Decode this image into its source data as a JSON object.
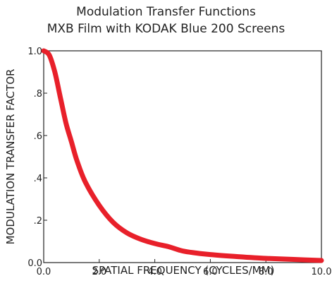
{
  "chart_data": {
    "type": "line",
    "title": "Modulation Transfer Functions",
    "subtitle": "MXB Film with KODAK Blue 200 Screens",
    "xlabel": "SPATIAL FREQUENCY (CYCLES/MM)",
    "ylabel": "MODULATION TRANSFER FACTOR",
    "xlim": [
      0,
      10
    ],
    "ylim": [
      0,
      1
    ],
    "xticks": [
      0,
      2,
      4,
      6,
      8,
      10
    ],
    "xtick_labels": [
      "0.0",
      "2.0",
      "4.0",
      "6.0",
      "8.0",
      "10.0"
    ],
    "yticks": [
      0,
      0.2,
      0.4,
      0.6,
      0.8,
      1.0
    ],
    "ytick_labels": [
      "0.0",
      ".2",
      ".4",
      ".6",
      ".8",
      "1.0"
    ],
    "grid": false,
    "series": [
      {
        "color": "#e8202a",
        "x": [
          0,
          0.2,
          0.4,
          0.6,
          0.8,
          1.0,
          1.2,
          1.5,
          2.0,
          2.5,
          3.0,
          3.5,
          4.0,
          4.5,
          5.0,
          5.5,
          6.0,
          7.0,
          8.0,
          9.0,
          10.0
        ],
        "y": [
          1.0,
          0.98,
          0.9,
          0.78,
          0.66,
          0.57,
          0.48,
          0.38,
          0.27,
          0.19,
          0.14,
          0.11,
          0.09,
          0.075,
          0.055,
          0.045,
          0.038,
          0.028,
          0.02,
          0.015,
          0.01
        ]
      }
    ]
  }
}
